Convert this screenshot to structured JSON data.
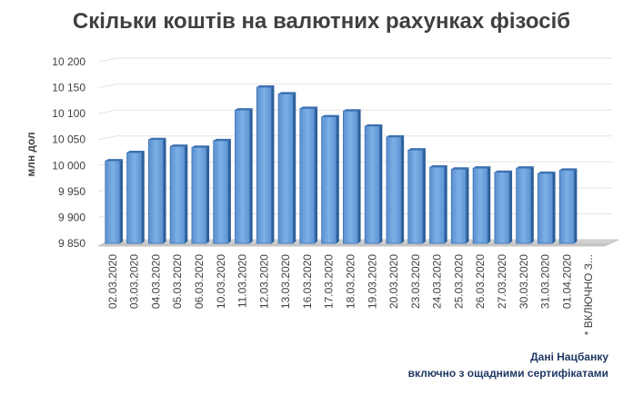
{
  "chart_data": {
    "type": "bar",
    "title": "Скільки коштів на валютних рахунках фізосіб",
    "ylabel": "млн дол",
    "xlabel": "",
    "ylim": [
      9850,
      10200
    ],
    "yticks": [
      "10 200",
      "10 150",
      "10 100",
      "10 050",
      "10 000",
      "9 950",
      "9 900",
      "9 850"
    ],
    "ytick_values": [
      10200,
      10150,
      10100,
      10050,
      10000,
      9950,
      9900,
      9850
    ],
    "grid": true,
    "categories": [
      "02.03.2020",
      "03.03.2020",
      "04.03.2020",
      "05.03.2020",
      "06.03.2020",
      "10.03.2020",
      "11.03.2020",
      "12.03.2020",
      "13.03.2020",
      "16.03.2020",
      "17.03.2020",
      "18.03.2020",
      "19.03.2020",
      "20.03.2020",
      "23.03.2020",
      "24.03.2020",
      "25.03.2020",
      "26.03.2020",
      "27.03.2020",
      "30.03.2020",
      "31.03.2020",
      "01.04.2020",
      "* ВКЛЮЧНО З..."
    ],
    "values": [
      10009,
      10025,
      10050,
      10037,
      10035,
      10048,
      10107,
      10151,
      10138,
      10110,
      10094,
      10105,
      10076,
      10055,
      10030,
      9997,
      9993,
      9995,
      9987,
      9995,
      9985,
      9991,
      null
    ],
    "bar_color": "#5b9bd5"
  },
  "notes": {
    "source": "Дані Нацбанку",
    "certificates": "включно з ощадними сертифікатами"
  }
}
